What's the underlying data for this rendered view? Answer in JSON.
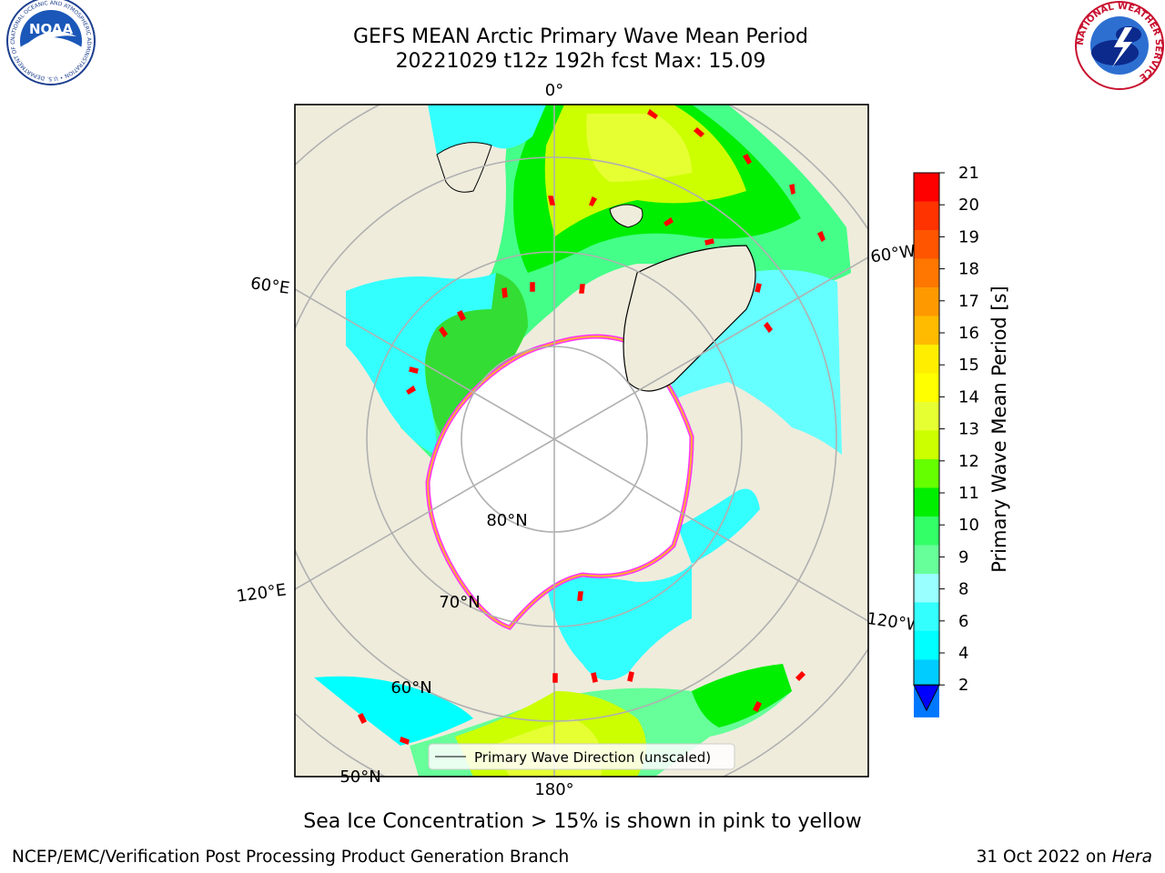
{
  "header": {
    "title_line1": "GEFS MEAN Arctic Primary Wave Mean Period",
    "title_line2": "20221029 t12z 192h fcst   Max: 15.09"
  },
  "logos": {
    "left": {
      "text": "NOAA",
      "ring_text": "NATIONAL OCEANIC AND ATMOSPHERIC ADMINISTRATION • U.S. DEPARTMENT OF COMMERCE"
    },
    "right": {
      "ring_text": "NATIONAL WEATHER SERVICE"
    }
  },
  "map": {
    "longitude_labels": [
      "0°",
      "60°E",
      "120°E",
      "180°",
      "120°W",
      "60°W"
    ],
    "latitude_labels": [
      "80°N",
      "70°N",
      "60°N",
      "50°N"
    ],
    "legend_label": "Primary Wave Direction (unscaled)",
    "colors": {
      "land": "#efecdc",
      "ice": "#ffffff",
      "gridline": "#b0b0b0",
      "arrow": "#ff0000",
      "ice_edge": "#ff33ff"
    }
  },
  "colorbar": {
    "label": "Primary Wave Mean Period [s]",
    "ticks": [
      "21",
      "20",
      "19",
      "18",
      "17",
      "16",
      "15",
      "14",
      "13",
      "12",
      "11",
      "10",
      "9",
      "8",
      "6",
      "4",
      "2"
    ],
    "colors": [
      "#ff0000",
      "#ff3300",
      "#ff5500",
      "#ff7700",
      "#ff9900",
      "#ffbb00",
      "#ffee00",
      "#ffff00",
      "#e6ff33",
      "#ccff00",
      "#66ff00",
      "#00ee00",
      "#33ff66",
      "#66ff99",
      "#99ffff",
      "#33ffff",
      "#00ffff",
      "#00ccff",
      "#0077ff"
    ],
    "extend_color": "#0000ff"
  },
  "footer": {
    "caption": "Sea Ice Concentration > 15% is shown in pink to yellow",
    "left": "NCEP/EMC/Verification Post Processing Product Generation Branch",
    "date": "31 Oct 2022 on ",
    "host": "Hera"
  }
}
